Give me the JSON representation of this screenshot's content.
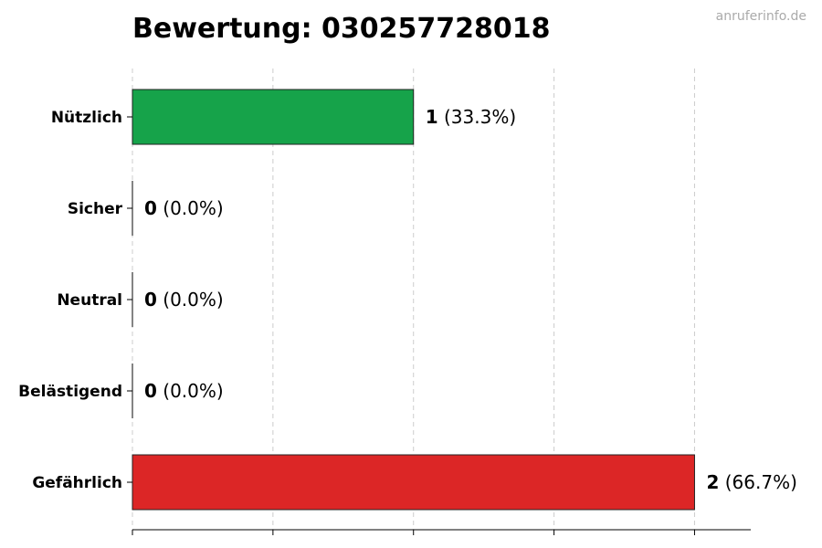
{
  "chart_data": {
    "type": "bar",
    "orientation": "horizontal",
    "title": "Bewertung: 030257728018",
    "categories": [
      "Nützlich",
      "Sicher",
      "Neutral",
      "Belästigend",
      "Gefährlich"
    ],
    "values": [
      1,
      0,
      0,
      0,
      2
    ],
    "percent_labels": [
      "(33.3%)",
      "(0.0%)",
      "(0.0%)",
      "(0.0%)",
      "(66.7%)"
    ],
    "colors": [
      "#16a34a",
      "#16a34a",
      "#888888",
      "#dc2626",
      "#dc2626"
    ],
    "xlim": [
      0,
      2.2
    ],
    "x_ticks": [
      0,
      0.5,
      1,
      1.5,
      2
    ],
    "x_tick_labels_shown": false,
    "grid": "vertical dashed"
  },
  "watermark": "anruferinfo.de"
}
